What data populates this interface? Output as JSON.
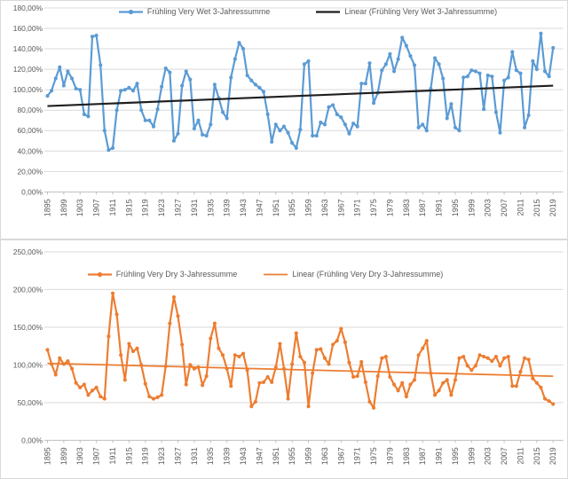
{
  "style": {
    "background": "#FFFFFF",
    "grid_color": "#D9D9D9",
    "axis_color": "#BFBFBF",
    "text_color": "#595959",
    "border_color": "#D9D9D9"
  },
  "chart_data": [
    {
      "type": "line",
      "title": "",
      "legend_series": "Frühling Very Wet 3-Jahressumme",
      "legend_trend": "Linear (Frühling Very Wet 3-Jahressumme)",
      "legend_position": "top-inside-center",
      "series_color": "#5B9BD5",
      "trend_color": "#1F1F1F",
      "grid": true,
      "x_start": 1895,
      "x_end": 2019,
      "x_tick_labels": [
        "1895",
        "1899",
        "1903",
        "1907",
        "1911",
        "1915",
        "1919",
        "1923",
        "1927",
        "1931",
        "1935",
        "1939",
        "1943",
        "1947",
        "1951",
        "1955",
        "1959",
        "1963",
        "1967",
        "1971",
        "1975",
        "1979",
        "1983",
        "1987",
        "1991",
        "1995",
        "1999",
        "2003",
        "2007",
        "2011",
        "2015",
        "2019"
      ],
      "ylim": [
        0,
        180
      ],
      "ytick_step": 20,
      "ytick_labels": [
        "0,00%",
        "20,00%",
        "40,00%",
        "60,00%",
        "80,00%",
        "100,00%",
        "120,00%",
        "140,00%",
        "160,00%",
        "180,00%"
      ],
      "values": [
        94,
        99,
        111,
        122,
        104,
        118,
        111,
        101,
        100,
        76,
        74,
        152,
        153,
        124,
        60,
        41,
        43,
        80,
        99,
        100,
        102,
        99,
        106,
        80,
        70,
        70,
        64,
        81,
        103,
        121,
        117,
        50,
        57,
        104,
        118,
        110,
        62,
        70,
        56,
        55,
        66,
        105,
        92,
        78,
        72,
        112,
        130,
        146,
        140,
        114,
        109,
        105,
        102,
        98,
        76,
        49,
        66,
        60,
        64,
        58,
        48,
        43,
        61,
        125,
        128,
        55,
        55,
        68,
        66,
        83,
        85,
        76,
        73,
        66,
        57,
        67,
        64,
        106,
        106,
        126,
        87,
        97,
        119,
        125,
        135,
        118,
        130,
        151,
        143,
        133,
        124,
        63,
        66,
        60,
        101,
        131,
        125,
        111,
        72,
        86,
        63,
        60,
        112,
        113,
        119,
        118,
        116,
        81,
        114,
        113,
        78,
        58,
        109,
        112,
        137,
        119,
        116,
        63,
        75,
        128,
        120,
        155,
        118,
        113,
        141
      ],
      "trend": {
        "start": 84,
        "end": 104
      }
    },
    {
      "type": "line",
      "title": "",
      "legend_series": "Frühling Very Dry 3-Jahressumme",
      "legend_trend": "Linear (Frühling Very Dry 3-Jahressumme)",
      "legend_position": "top-inside-center",
      "series_color": "#ED7D31",
      "trend_color": "#ED7D31",
      "grid": true,
      "x_start": 1895,
      "x_end": 2019,
      "x_tick_labels": [
        "1895",
        "1899",
        "1903",
        "1907",
        "1911",
        "1915",
        "1919",
        "1923",
        "1927",
        "1931",
        "1935",
        "1939",
        "1943",
        "1947",
        "1951",
        "1955",
        "1959",
        "1963",
        "1967",
        "1971",
        "1975",
        "1979",
        "1983",
        "1987",
        "1991",
        "1995",
        "1999",
        "2003",
        "2007",
        "2011",
        "2015",
        "2019"
      ],
      "ylim": [
        0,
        250
      ],
      "ytick_step": 50,
      "ytick_labels": [
        "0,00%",
        "50,00%",
        "100,00%",
        "150,00%",
        "200,00%",
        "250,00%"
      ],
      "values": [
        120,
        101,
        87,
        109,
        101,
        105,
        95,
        76,
        70,
        74,
        60,
        66,
        70,
        58,
        55,
        138,
        195,
        167,
        113,
        80,
        128,
        118,
        122,
        100,
        75,
        58,
        55,
        57,
        60,
        98,
        155,
        190,
        165,
        127,
        74,
        100,
        95,
        97,
        73,
        85,
        135,
        155,
        122,
        113,
        95,
        72,
        113,
        111,
        115,
        93,
        45,
        51,
        76,
        77,
        84,
        77,
        97,
        128,
        95,
        55,
        101,
        142,
        111,
        103,
        45,
        89,
        120,
        121,
        109,
        101,
        127,
        132,
        148,
        130,
        103,
        84,
        85,
        104,
        77,
        51,
        43,
        85,
        109,
        111,
        84,
        74,
        66,
        76,
        58,
        74,
        80,
        113,
        122,
        132,
        89,
        60,
        66,
        76,
        80,
        60,
        80,
        109,
        111,
        99,
        93,
        99,
        113,
        111,
        109,
        105,
        111,
        99,
        109,
        111,
        72,
        72,
        91,
        109,
        107,
        82,
        76,
        70,
        55,
        52,
        48
      ],
      "trend": {
        "start": 102,
        "end": 85
      }
    }
  ]
}
